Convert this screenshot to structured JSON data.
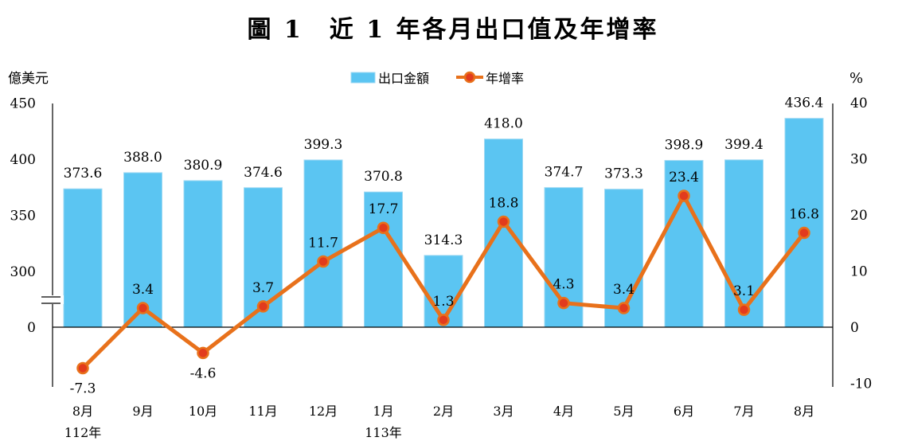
{
  "chart_data": {
    "type": "bar+line",
    "title": "圖 1　近 1 年各月出口值及年增率",
    "left_unit": "億美元",
    "right_unit": "%",
    "categories": [
      "8月",
      "9月",
      "10月",
      "11月",
      "12月",
      "1月",
      "2月",
      "3月",
      "4月",
      "5月",
      "6月",
      "7月",
      "8月"
    ],
    "year_labels": [
      "112年",
      "",
      "",
      "",
      "",
      "113年",
      "",
      "",
      "",
      "",
      "",
      "",
      ""
    ],
    "bar_series": {
      "name": "出口金額",
      "color": "#5bc5f2",
      "values": [
        373.6,
        388.0,
        380.9,
        374.6,
        399.3,
        370.8,
        314.3,
        418.0,
        374.7,
        373.3,
        398.9,
        399.4,
        436.4
      ],
      "labels": [
        "373.6",
        "388.0",
        "380.9",
        "374.6",
        "399.3",
        "370.8",
        "314.3",
        "418.0",
        "374.7",
        "373.3",
        "398.9",
        "399.4",
        "436.4"
      ]
    },
    "line_series": {
      "name": "年增率",
      "color": "#e8711b",
      "values": [
        -7.3,
        3.4,
        -4.6,
        3.7,
        11.7,
        17.7,
        1.3,
        18.8,
        4.3,
        3.4,
        23.4,
        3.1,
        16.8
      ],
      "labels": [
        "-7.3",
        "3.4",
        "-4.6",
        "3.7",
        "11.7",
        "17.7",
        "1.3",
        "18.8",
        "4.3",
        "3.4",
        "23.4",
        "3.1",
        "16.8"
      ]
    },
    "left_axis": {
      "ticks": [
        0,
        300,
        350,
        400,
        450
      ],
      "tick_labels": [
        "0",
        "300",
        "350",
        "400",
        "450"
      ],
      "broken_between": [
        0,
        300
      ]
    },
    "right_axis": {
      "ticks": [
        -10,
        0,
        10,
        20,
        30,
        40
      ],
      "tick_labels": [
        "-10",
        "0",
        "10",
        "20",
        "30",
        "40"
      ],
      "ylim": [
        -10,
        40
      ]
    },
    "legend_position": "top-center",
    "grid": false
  }
}
